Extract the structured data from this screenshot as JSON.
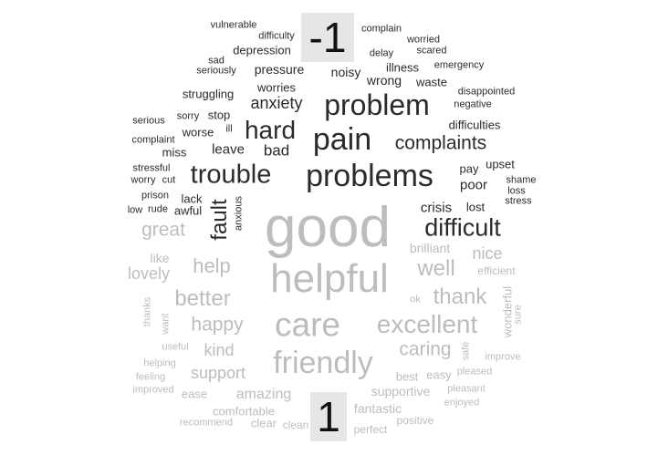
{
  "group_labels": {
    "negative": "-1",
    "positive": "1"
  },
  "colors": {
    "negative": "#2b2b2b",
    "positive": "#bdbdbd",
    "label_bg": "#e6e6e6"
  },
  "negative_words": [
    "vulnerable",
    "difficulty",
    "depression",
    "sad",
    "seriously",
    "pressure",
    "noisy",
    "complain",
    "delay",
    "worried",
    "scared",
    "illness",
    "emergency",
    "wrong",
    "waste",
    "worries",
    "struggling",
    "anxiety",
    "problem",
    "disappointed",
    "negative",
    "serious",
    "sorry",
    "stop",
    "ill",
    "worse",
    "hard",
    "difficulties",
    "complaint",
    "pain",
    "complaints",
    "miss",
    "leave",
    "bad",
    "upset",
    "stressful",
    "worry",
    "cut",
    "trouble",
    "problems",
    "pay",
    "shame",
    "loss",
    "poor",
    "stress",
    "prison",
    "lack",
    "rude",
    "awful",
    "anxious",
    "crisis",
    "lost",
    "low",
    "fault",
    "difficult"
  ],
  "positive_words": [
    "good",
    "great",
    "brilliant",
    "nice",
    "like",
    "helpful",
    "lovely",
    "help",
    "well",
    "efficient",
    "better",
    "thank",
    "thanks",
    "want",
    "ok",
    "wonderful",
    "sure",
    "happy",
    "care",
    "excellent",
    "useful",
    "kind",
    "caring",
    "safe",
    "friendly",
    "improve",
    "helping",
    "support",
    "best",
    "easy",
    "pleased",
    "feeling",
    "improved",
    "supportive",
    "pleasant",
    "ease",
    "amazing",
    "enjoyed",
    "comfortable",
    "fantastic",
    "recommend",
    "clear",
    "clean",
    "positive",
    "perfect"
  ]
}
